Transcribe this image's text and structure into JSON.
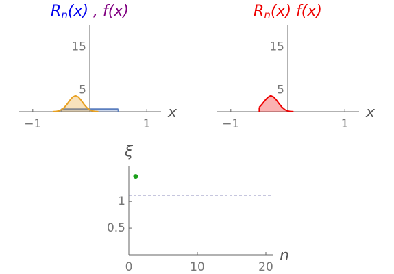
{
  "chart_data": [
    {
      "type": "area",
      "title_parts": [
        {
          "text": "R",
          "color": "#0000ee"
        },
        {
          "text": "n",
          "color": "#0000ee",
          "sub": true
        },
        {
          "text": "(x)",
          "color": "#0000ee"
        },
        {
          "text": " , ",
          "color": "#800080"
        },
        {
          "text": "f(x)",
          "color": "#800080"
        }
      ],
      "xlabel": "x",
      "xlim": [
        -1.25,
        1.25
      ],
      "ylim": [
        0,
        20
      ],
      "xticks": [
        {
          "value": -1,
          "label": "−1"
        },
        1
      ],
      "yticks": [
        5,
        15
      ],
      "series": [
        {
          "color": "#5b7fbf",
          "x": [
            -0.5,
            0.5
          ],
          "values": [
            0.6,
            0.6
          ]
        },
        {
          "color": "#e8a020",
          "x": [
            -0.65,
            -0.6,
            -0.55,
            -0.5,
            -0.45,
            -0.4,
            -0.35,
            -0.3,
            -0.25,
            -0.2,
            -0.15,
            -0.1,
            -0.05,
            0,
            0.05,
            0.1,
            0.15
          ],
          "values": [
            0.02,
            0.05,
            0.17,
            0.43,
            0.92,
            1.69,
            2.62,
            3.39,
            3.7,
            3.39,
            2.62,
            1.69,
            0.92,
            0.43,
            0.17,
            0.05,
            0.02
          ]
        }
      ]
    },
    {
      "type": "area",
      "title_parts": [
        {
          "text": "R",
          "color": "#ee0000"
        },
        {
          "text": "n",
          "color": "#ee0000",
          "sub": true
        },
        {
          "text": "(x) f(x)",
          "color": "#ee0000"
        }
      ],
      "xlabel": "x",
      "xlim": [
        -1.25,
        1.25
      ],
      "ylim": [
        0,
        20
      ],
      "xticks": [
        {
          "value": -1,
          "label": "−1"
        },
        1
      ],
      "yticks": [
        5,
        15
      ],
      "series": [
        {
          "color": "#ee0000",
          "x": [
            -0.5,
            -0.45,
            -0.4,
            -0.35,
            -0.3,
            -0.25,
            -0.2,
            -0.15,
            -0.1,
            -0.05,
            0,
            0.05,
            0.1
          ],
          "values": [
            1.0,
            1.75,
            2.6,
            3.3,
            3.7,
            3.4,
            2.7,
            1.8,
            1.0,
            0.45,
            0.17,
            0.05,
            0.02
          ]
        }
      ]
    },
    {
      "type": "scatter",
      "ylabel": "ξ",
      "ylabel_color": "#1a9f1a",
      "xlabel": "n",
      "xlim": [
        0,
        21
      ],
      "ylim": [
        0,
        1.67
      ],
      "xticks": [
        0,
        10,
        20
      ],
      "yticks": [
        0.5,
        1
      ],
      "reference_line": {
        "value": 1.12,
        "color": "#6a6aa8"
      },
      "series": [
        {
          "color": "#1a9f1a",
          "x": [
            1
          ],
          "values": [
            1.47
          ]
        }
      ]
    }
  ]
}
